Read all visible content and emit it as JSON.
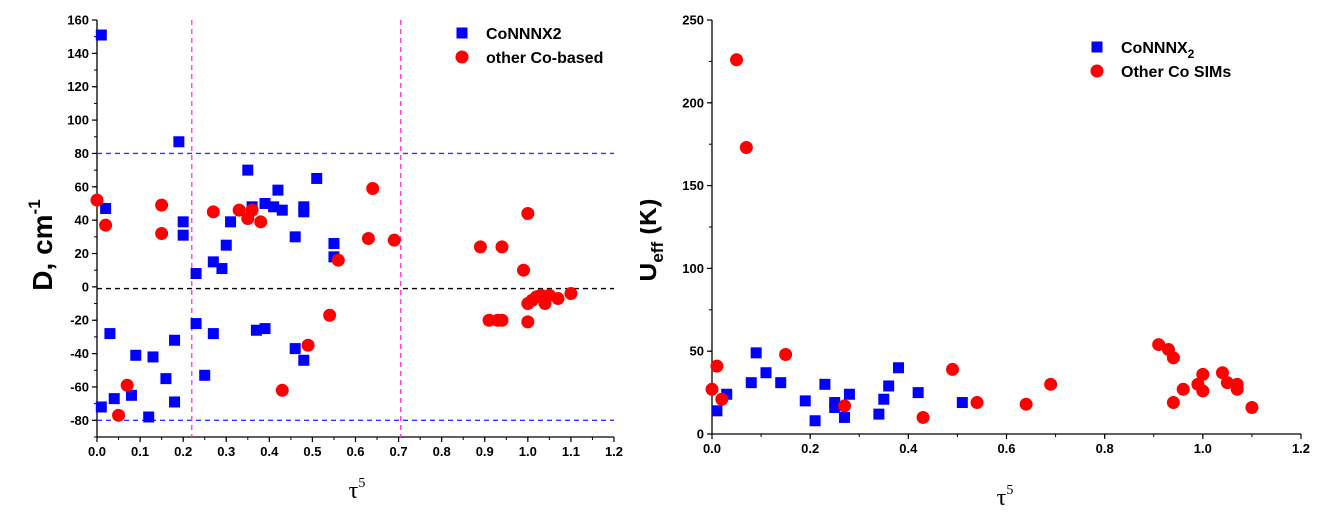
{
  "colors": {
    "square_series": "#0000ff",
    "circle_series": "#ff0000",
    "hline": "#3333ff",
    "vline": "#ff33cc",
    "zeroline": "#000000"
  },
  "chart_data": [
    {
      "type": "scatter",
      "xlabel": "τ5",
      "ylabel": "D, cm-1",
      "xlim": [
        0,
        1.2
      ],
      "ylim": [
        -90,
        160
      ],
      "xticks": [
        "0.0",
        "0.1",
        "0.2",
        "0.3",
        "0.4",
        "0.5",
        "0.6",
        "0.7",
        "0.8",
        "0.9",
        "1.0",
        "1.1",
        "1.2"
      ],
      "yticks": [
        "-80",
        "-60",
        "-40",
        "-20",
        "0",
        "20",
        "40",
        "60",
        "80",
        "100",
        "120",
        "140",
        "160"
      ],
      "legend_position": "top-right",
      "reference_lines": {
        "horizontal": [
          80,
          -80,
          -1
        ],
        "vertical": [
          0.22,
          0.705
        ]
      },
      "series": [
        {
          "name": "CoNNNX2",
          "marker": "square",
          "points": [
            [
              0.01,
              151
            ],
            [
              0.02,
              47
            ],
            [
              0.01,
              -72
            ],
            [
              0.03,
              -28
            ],
            [
              0.04,
              -67
            ],
            [
              0.08,
              -65
            ],
            [
              0.09,
              -41
            ],
            [
              0.12,
              -78
            ],
            [
              0.13,
              -42
            ],
            [
              0.16,
              -55
            ],
            [
              0.18,
              -32
            ],
            [
              0.18,
              -69
            ],
            [
              0.19,
              87
            ],
            [
              0.2,
              39
            ],
            [
              0.2,
              31
            ],
            [
              0.23,
              8
            ],
            [
              0.23,
              -22
            ],
            [
              0.25,
              -53
            ],
            [
              0.27,
              15
            ],
            [
              0.27,
              -28
            ],
            [
              0.29,
              11
            ],
            [
              0.3,
              25
            ],
            [
              0.31,
              39
            ],
            [
              0.35,
              70
            ],
            [
              0.36,
              48
            ],
            [
              0.37,
              -26
            ],
            [
              0.39,
              -25
            ],
            [
              0.39,
              50
            ],
            [
              0.41,
              48
            ],
            [
              0.42,
              58
            ],
            [
              0.43,
              46
            ],
            [
              0.46,
              30
            ],
            [
              0.46,
              -37
            ],
            [
              0.48,
              48
            ],
            [
              0.48,
              45
            ],
            [
              0.48,
              -44
            ],
            [
              0.51,
              65
            ],
            [
              0.55,
              26
            ],
            [
              0.55,
              18
            ]
          ]
        },
        {
          "name": "other Co-based",
          "marker": "circle",
          "points": [
            [
              0.0,
              52
            ],
            [
              0.02,
              37
            ],
            [
              0.05,
              -77
            ],
            [
              0.07,
              -59
            ],
            [
              0.15,
              49
            ],
            [
              0.15,
              32
            ],
            [
              0.27,
              45
            ],
            [
              0.33,
              46
            ],
            [
              0.35,
              41
            ],
            [
              0.36,
              46
            ],
            [
              0.38,
              39
            ],
            [
              0.43,
              -62
            ],
            [
              0.49,
              -35
            ],
            [
              0.54,
              -17
            ],
            [
              0.56,
              16
            ],
            [
              0.63,
              29
            ],
            [
              0.64,
              59
            ],
            [
              0.69,
              28
            ],
            [
              0.89,
              24
            ],
            [
              0.91,
              -20
            ],
            [
              0.93,
              -20
            ],
            [
              0.94,
              -20
            ],
            [
              0.94,
              24
            ],
            [
              0.99,
              10
            ],
            [
              1.0,
              44
            ],
            [
              1.0,
              -21
            ],
            [
              1.0,
              -10
            ],
            [
              1.01,
              -8
            ],
            [
              1.02,
              -6
            ],
            [
              1.03,
              -5
            ],
            [
              1.04,
              -10
            ],
            [
              1.05,
              -5
            ],
            [
              1.07,
              -7
            ],
            [
              1.1,
              -4
            ]
          ]
        }
      ]
    },
    {
      "type": "scatter",
      "xlabel": "τ5",
      "ylabel": "Ueff (K)",
      "xlim": [
        0,
        1.2
      ],
      "ylim": [
        0,
        250
      ],
      "xticks": [
        "0.0",
        "0.2",
        "0.4",
        "0.6",
        "0.8",
        "1.0",
        "1.2"
      ],
      "yticks": [
        "0",
        "50",
        "100",
        "150",
        "200",
        "250"
      ],
      "legend_position": "top-right",
      "series": [
        {
          "name": "CoNNNX2",
          "marker": "square",
          "points": [
            [
              0.01,
              14
            ],
            [
              0.03,
              24
            ],
            [
              0.08,
              31
            ],
            [
              0.09,
              49
            ],
            [
              0.11,
              37
            ],
            [
              0.14,
              31
            ],
            [
              0.19,
              20
            ],
            [
              0.21,
              8
            ],
            [
              0.23,
              30
            ],
            [
              0.25,
              19
            ],
            [
              0.25,
              16
            ],
            [
              0.27,
              10
            ],
            [
              0.28,
              24
            ],
            [
              0.34,
              12
            ],
            [
              0.35,
              21
            ],
            [
              0.36,
              29
            ],
            [
              0.38,
              40
            ],
            [
              0.42,
              25
            ],
            [
              0.51,
              19
            ]
          ]
        },
        {
          "name": "Other Co SIMs",
          "marker": "circle",
          "points": [
            [
              0.0,
              27
            ],
            [
              0.01,
              41
            ],
            [
              0.02,
              21
            ],
            [
              0.05,
              226
            ],
            [
              0.07,
              173
            ],
            [
              0.15,
              48
            ],
            [
              0.27,
              17
            ],
            [
              0.43,
              10
            ],
            [
              0.49,
              39
            ],
            [
              0.54,
              19
            ],
            [
              0.64,
              18
            ],
            [
              0.69,
              30
            ],
            [
              0.91,
              54
            ],
            [
              0.93,
              51
            ],
            [
              0.94,
              46
            ],
            [
              0.94,
              19
            ],
            [
              0.96,
              27
            ],
            [
              0.99,
              30
            ],
            [
              1.0,
              36
            ],
            [
              1.0,
              26
            ],
            [
              1.04,
              37
            ],
            [
              1.05,
              31
            ],
            [
              1.07,
              30
            ],
            [
              1.07,
              27
            ],
            [
              1.1,
              16
            ]
          ]
        }
      ]
    }
  ]
}
